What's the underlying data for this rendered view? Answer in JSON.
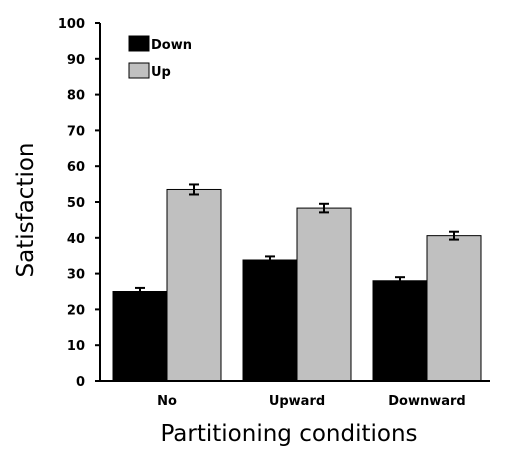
{
  "chart_data": {
    "type": "bar",
    "title": "",
    "xlabel": "Partitioning conditions",
    "ylabel": "Satisfaction",
    "ylim": [
      0,
      100
    ],
    "yticks": [
      0,
      10,
      20,
      30,
      40,
      50,
      60,
      70,
      80,
      90,
      100
    ],
    "grid": false,
    "legend_position": "top-left",
    "categories": [
      "No",
      "Upward",
      "Downward"
    ],
    "series": [
      {
        "name": "Down",
        "color": "#000000",
        "values": [
          25,
          33.8,
          28
        ],
        "errors": [
          1,
          1,
          1
        ]
      },
      {
        "name": "Up",
        "color": "#c0c0c0",
        "values": [
          53.5,
          48.3,
          40.6
        ],
        "errors": [
          1.4,
          1.2,
          1.1
        ]
      }
    ]
  }
}
